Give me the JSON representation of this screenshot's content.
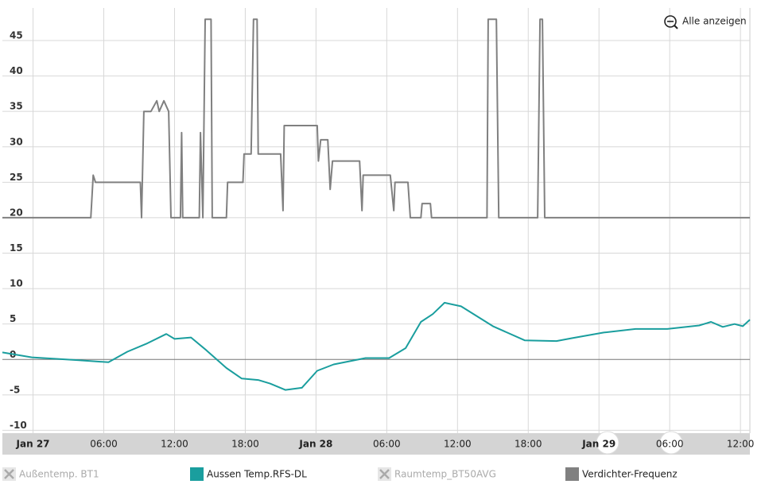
{
  "chart_data": {
    "type": "line",
    "zoom_button": "Alle anzeigen",
    "xlim": [
      -2.6,
      60.8
    ],
    "ylim": [
      -10.4,
      49.6
    ],
    "yticks": [
      -10,
      -5,
      0,
      5,
      10,
      15,
      20,
      25,
      30,
      35,
      40,
      45
    ],
    "xticks": [
      {
        "value": 0,
        "label": "Jan 27"
      },
      {
        "value": 6,
        "label": "06:00"
      },
      {
        "value": 12,
        "label": "12:00"
      },
      {
        "value": 18,
        "label": "18:00"
      },
      {
        "value": 24,
        "label": "Jan 28"
      },
      {
        "value": 30,
        "label": "06:00"
      },
      {
        "value": 36,
        "label": "12:00"
      },
      {
        "value": 42,
        "label": "18:00"
      },
      {
        "value": 48,
        "label": "Jan 29"
      },
      {
        "value": 54,
        "label": "06:00"
      },
      {
        "value": 60,
        "label": "12:00"
      }
    ],
    "grid": true,
    "series": [
      {
        "name": "Außentemp. BT1",
        "color": "#bbbbbb",
        "visible": false
      },
      {
        "name": "Aussen Temp.RFS-DL",
        "color": "#1a9e9e",
        "visible": true,
        "x": [
          -2.6,
          -0.1,
          3.9,
          6.4,
          8.0,
          9.6,
          11.3,
          12.0,
          13.4,
          14.7,
          16.4,
          17.7,
          19.1,
          20.1,
          21.4,
          22.8,
          24.1,
          25.5,
          28.2,
          30.2,
          31.6,
          32.9,
          33.9,
          34.9,
          36.3,
          39.0,
          41.7,
          44.4,
          45.7,
          48.4,
          51.1,
          53.8,
          56.5,
          57.5,
          58.5,
          59.5,
          60.2,
          60.8
        ],
        "values": [
          1.0,
          0.3,
          -0.1,
          -0.4,
          1.1,
          2.2,
          3.6,
          2.9,
          3.1,
          1.3,
          -1.2,
          -2.7,
          -2.9,
          -3.4,
          -4.3,
          -4.0,
          -1.6,
          -0.7,
          0.2,
          0.2,
          1.6,
          5.3,
          6.4,
          8.0,
          7.5,
          4.7,
          2.7,
          2.6,
          3.0,
          3.8,
          4.3,
          4.3,
          4.8,
          5.3,
          4.6,
          5.0,
          4.7,
          5.6
        ]
      },
      {
        "name": "Raumtemp_BT50AVG",
        "color": "#bbbbbb",
        "visible": false
      },
      {
        "name": "Verdichter-Frequenz",
        "color": "#808080",
        "visible": true,
        "x": [
          -2.6,
          4.9,
          5.1,
          5.3,
          9.1,
          9.2,
          9.4,
          10.0,
          10.5,
          10.7,
          11.1,
          11.5,
          11.7,
          12.5,
          12.6,
          12.7,
          14.1,
          14.2,
          14.4,
          14.6,
          15.1,
          15.2,
          16.4,
          16.5,
          17.8,
          17.9,
          18.5,
          18.7,
          19.0,
          19.1,
          21.0,
          21.2,
          21.3,
          24.1,
          24.2,
          24.4,
          25.0,
          25.2,
          25.4,
          27.7,
          27.9,
          28.0,
          30.3,
          30.6,
          30.7,
          31.8,
          32.0,
          32.9,
          33.0,
          33.7,
          33.8,
          38.5,
          38.6,
          39.3,
          39.5,
          42.8,
          43.0,
          43.2,
          43.4,
          60.8
        ],
        "values": [
          20,
          20,
          26,
          25,
          25,
          20,
          35,
          35,
          36.5,
          35,
          36.5,
          35,
          20,
          20,
          32,
          20,
          20,
          32,
          20,
          48,
          48,
          20,
          20,
          25,
          25,
          29,
          29,
          48,
          48,
          29,
          29,
          21,
          33,
          33,
          28,
          31,
          31,
          24,
          28,
          28,
          21,
          26,
          26,
          21,
          25,
          25,
          20,
          20,
          22,
          22,
          20,
          20,
          48,
          48,
          20,
          20,
          48,
          48,
          20,
          20
        ]
      }
    ]
  }
}
